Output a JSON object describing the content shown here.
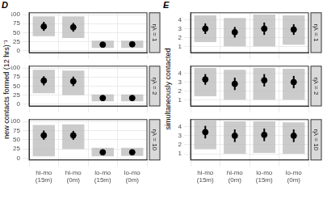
{
  "chart_data": [
    {
      "type": "dot",
      "title": "D",
      "y_label": "new contacts formed (12 hrs)⁻¹",
      "categories": [
        "hi-mo (15m)",
        "hi-mo (0m)",
        "lo-mo (15m)",
        "lo-mo (0m)"
      ],
      "color": "#000000",
      "grid": true,
      "ylim": [
        -5,
        105
      ],
      "yticks": [
        0,
        25,
        50,
        75,
        100
      ],
      "facets": [
        {
          "label": "ηλ = 1",
          "values": [
            67,
            65,
            17,
            18
          ],
          "errors": [
            [
              55,
              80
            ],
            [
              53,
              77
            ],
            [
              13,
              22
            ],
            [
              14,
              23
            ]
          ],
          "ranges": [
            [
              40,
              95
            ],
            [
              35,
              95
            ],
            [
              8,
              28
            ],
            [
              8,
              28
            ]
          ]
        },
        {
          "label": "ηλ = 2",
          "values": [
            65,
            63,
            17,
            17
          ],
          "errors": [
            [
              52,
              77
            ],
            [
              50,
              76
            ],
            [
              13,
              21
            ],
            [
              13,
              21
            ]
          ],
          "ranges": [
            [
              30,
              95
            ],
            [
              25,
              93
            ],
            [
              8,
              27
            ],
            [
              8,
              27
            ]
          ]
        },
        {
          "label": "ηλ = 10",
          "values": [
            62,
            62,
            16,
            16
          ],
          "errors": [
            [
              50,
              75
            ],
            [
              50,
              74
            ],
            [
              12,
              20
            ],
            [
              12,
              20
            ]
          ],
          "ranges": [
            [
              5,
              90
            ],
            [
              25,
              92
            ],
            [
              5,
              28
            ],
            [
              6,
              28
            ]
          ]
        }
      ]
    },
    {
      "type": "dot",
      "title": "E",
      "y_label": "simultaneously contacted",
      "categories": [
        "hi-mo (15m)",
        "hi-mo (0m)",
        "lo-mo (15m)",
        "lo-mo (0m)"
      ],
      "color": "#000000",
      "grid": true,
      "ylim": [
        0.3,
        4.8
      ],
      "yticks": [
        1,
        2,
        3,
        4
      ],
      "facets": [
        {
          "label": "ηλ = 1",
          "values": [
            3.0,
            2.6,
            3.0,
            2.9
          ],
          "errors": [
            [
              2.4,
              3.6
            ],
            [
              2.0,
              3.2
            ],
            [
              2.3,
              3.7
            ],
            [
              2.3,
              3.5
            ]
          ],
          "ranges": [
            [
              1.5,
              4.5
            ],
            [
              1.0,
              4.2
            ],
            [
              1.0,
              4.6
            ],
            [
              1.2,
              4.5
            ]
          ]
        },
        {
          "label": "ηλ = 2",
          "values": [
            3.3,
            2.8,
            3.2,
            3.0
          ],
          "errors": [
            [
              2.7,
              3.9
            ],
            [
              2.1,
              3.5
            ],
            [
              2.5,
              3.9
            ],
            [
              2.3,
              3.7
            ]
          ],
          "ranges": [
            [
              1.4,
              4.6
            ],
            [
              1.0,
              4.4
            ],
            [
              1.0,
              4.6
            ],
            [
              1.0,
              4.5
            ]
          ]
        },
        {
          "label": "ηλ = 10",
          "values": [
            3.4,
            3.0,
            3.1,
            3.0
          ],
          "errors": [
            [
              2.7,
              4.1
            ],
            [
              2.3,
              3.7
            ],
            [
              2.4,
              3.8
            ],
            [
              2.3,
              3.7
            ]
          ],
          "ranges": [
            [
              1.5,
              4.7
            ],
            [
              1.0,
              4.6
            ],
            [
              1.1,
              4.6
            ],
            [
              1.0,
              4.5
            ]
          ]
        }
      ]
    }
  ]
}
